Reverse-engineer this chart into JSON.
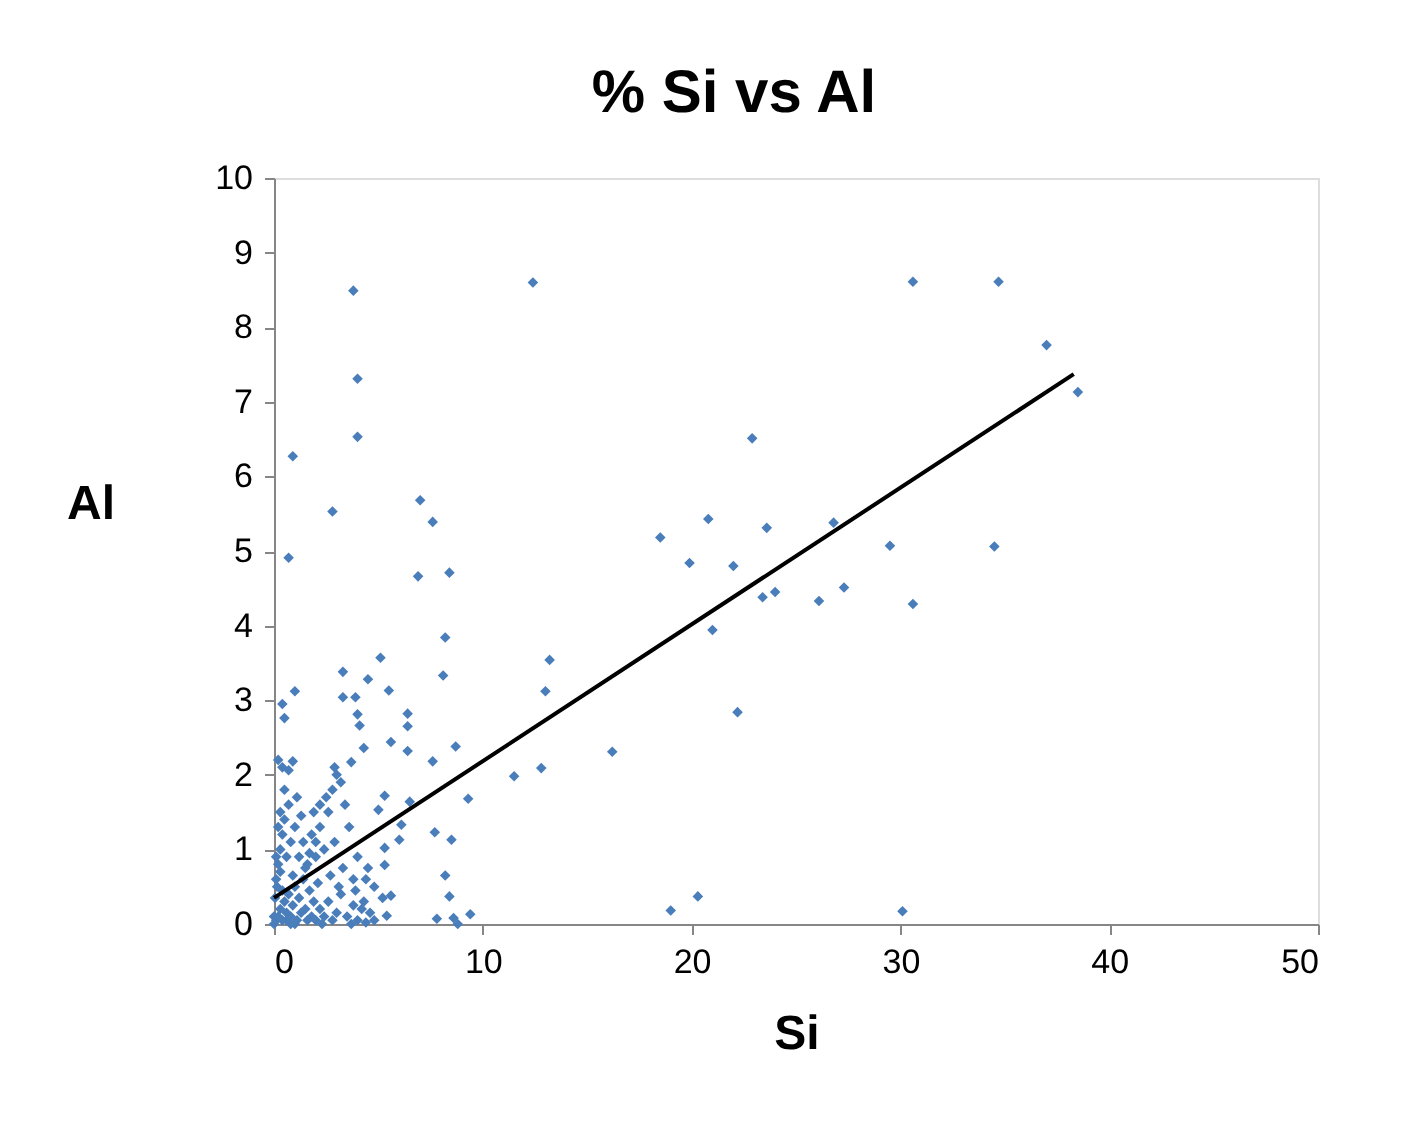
{
  "chart_data": {
    "type": "scatter",
    "title": "% Si vs Al",
    "xlabel": "Si",
    "ylabel": "Al",
    "xlim": [
      0,
      50
    ],
    "xticks": [
      0,
      10,
      20,
      30,
      40,
      50
    ],
    "ylim": [
      0,
      10
    ],
    "yticks": [
      0,
      1,
      2,
      3,
      4,
      5,
      6,
      7,
      8,
      9,
      10
    ],
    "grid": false,
    "series": [
      {
        "marker": "diamond",
        "color": "#4a7ebb",
        "x": [
          30.6,
          34.7,
          37.0,
          38.5,
          22.9,
          20.8,
          18.5,
          23.6,
          26.8,
          19.9,
          22.0,
          29.5,
          34.5,
          21.0,
          23.4,
          24.0,
          26.1,
          27.3,
          30.6,
          22.2,
          16.2,
          19.0,
          20.3,
          30.1,
          3.8,
          12.4,
          4.0,
          4.0,
          0.9,
          2.8,
          7.0,
          7.6,
          0.7,
          6.9,
          8.4,
          8.2,
          5.1,
          13.2,
          3.3,
          8.1,
          4.5,
          13.0,
          1.0,
          5.5,
          3.3,
          3.9,
          0.4,
          6.4,
          0.5,
          4.0,
          4.1,
          6.4,
          5.6,
          4.3,
          6.4,
          8.7,
          7.6,
          3.7,
          0.9,
          0.7,
          12.8,
          11.5,
          9.3,
          5.3,
          6.5,
          5.0,
          6.1,
          7.7,
          8.5,
          6.0,
          5.3,
          5.3,
          8.2,
          5.6,
          8.4,
          7.8,
          8.6,
          9.4,
          8.8,
          5.4,
          4.4,
          0.1,
          0.2,
          0.3,
          0.4,
          0.5,
          0.6,
          0.7,
          0.8,
          0.9,
          1.0,
          1.1,
          1.2,
          1.3,
          1.4,
          1.5,
          1.6,
          1.7,
          1.8,
          1.9,
          2.0,
          2.2,
          2.4,
          2.6,
          2.8,
          3.0,
          3.2,
          3.5,
          3.8,
          4.0,
          4.3,
          4.6,
          0.1,
          0.2,
          0.3,
          0.4,
          0.5,
          0.3,
          0.6,
          0.8,
          1.0,
          0.7,
          0.2,
          0.1,
          1.2,
          1.4,
          1.6,
          1.8,
          2.0,
          2.2,
          2.4,
          2.6,
          2.8,
          3.0,
          3.2,
          2.9,
          3.4,
          2.5,
          2.2,
          1.9,
          0.2,
          0.4,
          1.1,
          3.6,
          4.0,
          4.4,
          4.8,
          5.2,
          3.8,
          3.3,
          2.7,
          2.1,
          1.5,
          0.9,
          0.4,
          0.05,
          0.15,
          0.6,
          1.0,
          2.3,
          3.7,
          4.8,
          3.9,
          4.5,
          2.0,
          1.3,
          0.5,
          0.8,
          0.0,
          0.0,
          0.3,
          1.7,
          2.9,
          3.1,
          4.2
        ],
        "values": [
          8.61,
          8.61,
          7.76,
          7.13,
          6.51,
          5.43,
          5.18,
          5.31,
          5.38,
          4.84,
          4.8,
          5.07,
          5.06,
          3.94,
          4.38,
          4.45,
          4.33,
          4.51,
          4.29,
          2.84,
          2.31,
          0.18,
          0.37,
          0.17,
          8.49,
          8.6,
          7.31,
          6.53,
          6.27,
          5.53,
          5.68,
          5.39,
          4.91,
          4.66,
          4.71,
          3.84,
          3.57,
          3.54,
          3.38,
          3.33,
          3.28,
          3.12,
          3.12,
          3.13,
          3.04,
          3.04,
          2.95,
          2.82,
          2.76,
          2.81,
          2.66,
          2.65,
          2.44,
          2.36,
          2.32,
          2.38,
          2.18,
          2.17,
          2.18,
          2.06,
          2.09,
          1.98,
          1.68,
          1.72,
          1.64,
          1.53,
          1.33,
          1.23,
          1.13,
          1.13,
          1.02,
          0.79,
          0.65,
          0.38,
          0.37,
          0.07,
          0.08,
          0.13,
          0.0,
          0.11,
          0.02,
          0.05,
          0.1,
          0.2,
          0.05,
          0.3,
          0.15,
          0.4,
          0.1,
          0.25,
          0.5,
          0.05,
          0.35,
          0.15,
          0.6,
          0.2,
          0.05,
          0.45,
          0.1,
          0.3,
          0.05,
          0.2,
          0.1,
          0.3,
          0.05,
          0.15,
          0.4,
          0.1,
          0.25,
          0.05,
          0.3,
          0.15,
          0.6,
          0.8,
          1.0,
          1.2,
          1.4,
          1.5,
          0.9,
          1.1,
          1.3,
          1.6,
          1.3,
          0.9,
          0.9,
          1.1,
          0.8,
          1.2,
          0.9,
          1.3,
          1.0,
          1.5,
          1.8,
          2.0,
          1.9,
          2.1,
          1.6,
          1.7,
          1.6,
          1.5,
          2.2,
          2.1,
          1.7,
          1.3,
          0.9,
          0.6,
          0.5,
          0.35,
          0.6,
          0.75,
          0.65,
          0.55,
          0.75,
          0.65,
          0.45,
          0.35,
          0.5,
          0.05,
          0.0,
          0.0,
          0.0,
          0.05,
          0.45,
          0.75,
          1.1,
          1.45,
          1.8,
          0.0,
          0.1,
          0.0,
          0.7,
          0.95,
          1.1,
          0.5,
          0.2
        ]
      },
      {
        "type": "line",
        "marker": "none",
        "line_style": "solid",
        "color": "#000000",
        "x": [
          0,
          38.3
        ],
        "values": [
          0.35,
          7.37
        ]
      }
    ]
  }
}
